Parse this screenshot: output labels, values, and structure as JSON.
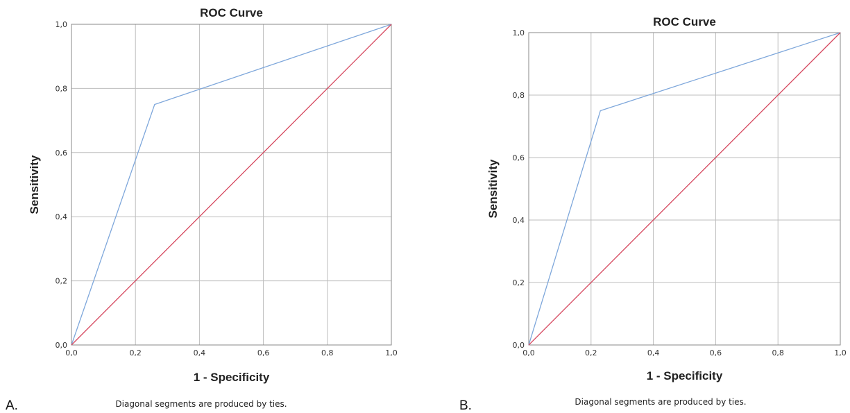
{
  "chart_data": [
    {
      "type": "line",
      "panel_label": "A.",
      "title": "ROC Curve",
      "xlabel": "1 - Specificity",
      "ylabel": "Sensitivity",
      "note": "Diagonal segments are produced by ties.",
      "xlim": [
        0,
        1
      ],
      "ylim": [
        0,
        1
      ],
      "xticks": [
        "0,0",
        "0,2",
        "0,4",
        "0,6",
        "0,8",
        "1,0"
      ],
      "yticks": [
        "0,0",
        "0,2",
        "0,4",
        "0,6",
        "0,8",
        "1,0"
      ],
      "grid": true,
      "series": [
        {
          "x": [
            0,
            0.26,
            1
          ],
          "y": [
            0,
            0.75,
            1
          ],
          "color": "#7ea7db"
        },
        {
          "x": [
            0,
            1
          ],
          "y": [
            0,
            1
          ],
          "color": "#d6485f"
        }
      ]
    },
    {
      "type": "line",
      "panel_label": "B.",
      "title": "ROC Curve",
      "xlabel": "1 - Specificity",
      "ylabel": "Sensitivity",
      "note": "Diagonal segments are produced by ties.",
      "xlim": [
        0,
        1
      ],
      "ylim": [
        0,
        1
      ],
      "xticks": [
        "0,0",
        "0,2",
        "0,4",
        "0,6",
        "0,8",
        "1,0"
      ],
      "yticks": [
        "0,0",
        "0,2",
        "0,4",
        "0,6",
        "0,8",
        "1,0"
      ],
      "grid": true,
      "series": [
        {
          "x": [
            0,
            0.23,
            1
          ],
          "y": [
            0,
            0.75,
            1
          ],
          "color": "#7ea7db"
        },
        {
          "x": [
            0,
            1
          ],
          "y": [
            0,
            1
          ],
          "color": "#d6485f"
        }
      ]
    }
  ]
}
